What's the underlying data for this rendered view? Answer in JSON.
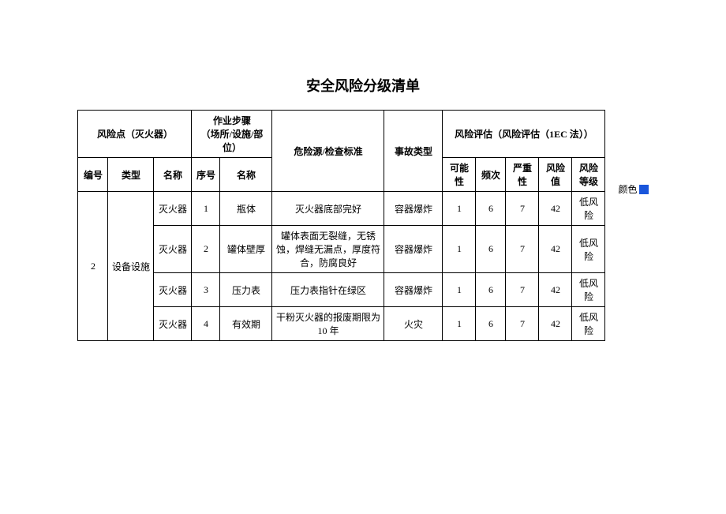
{
  "title": "安全风险分级清单",
  "headers": {
    "risk_point_group": "风险点（灭火器）",
    "work_step_group": "作业步骤\n（场所/设施/部位）",
    "hazard_source": "危险源/检查标准",
    "accident_type": "事故类型",
    "risk_eval_group": "风险评估（风险评估（1EC 法））",
    "no": "编号",
    "type": "类型",
    "name": "名称",
    "seq": "序号",
    "step_name": "名称",
    "possibility": "可能性",
    "frequency": "频次",
    "severity": "严重性",
    "risk_value": "风险值",
    "risk_level": "风险\n等级"
  },
  "group": {
    "no": "2",
    "type": "设备设施"
  },
  "rows": [
    {
      "name": "灭火器",
      "seq": "1",
      "step": "瓶体",
      "hazard": "灭火器底部完好",
      "accident": "容器爆炸",
      "p": "1",
      "f": "6",
      "s": "7",
      "v": "42",
      "lvl": "低风险"
    },
    {
      "name": "灭火器",
      "seq": "2",
      "step": "罐体壁厚",
      "hazard": "罐体表面无裂缝，无锈蚀，焊缝无漏点，厚度符合，防腐良好",
      "accident": "容器爆炸",
      "p": "1",
      "f": "6",
      "s": "7",
      "v": "42",
      "lvl": "低风险"
    },
    {
      "name": "灭火器",
      "seq": "3",
      "step": "压力表",
      "hazard": "压力表指针在绿区",
      "accident": "容器爆炸",
      "p": "1",
      "f": "6",
      "s": "7",
      "v": "42",
      "lvl": "低风险"
    },
    {
      "name": "灭火器",
      "seq": "4",
      "step": "有效期",
      "hazard": "干粉灭火器的报废期限为 10 年",
      "accident": "火灾",
      "p": "1",
      "f": "6",
      "s": "7",
      "v": "42",
      "lvl": "低风险"
    }
  ],
  "color_label": "颜色",
  "swatch_color": "#1a56db"
}
